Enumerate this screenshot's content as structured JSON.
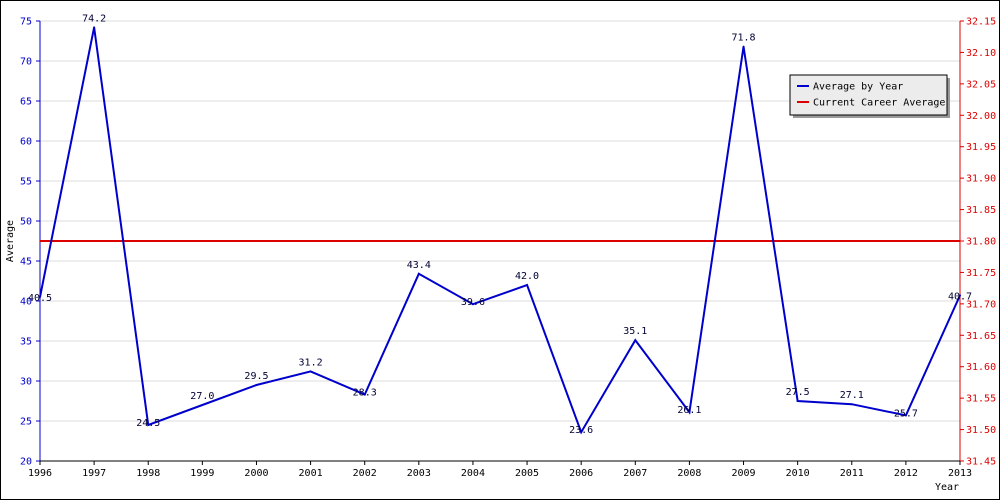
{
  "chart_data": {
    "type": "line",
    "title": "",
    "xlabel": "Year",
    "ylabel": "Average",
    "x": [
      "1996",
      "1997",
      "1998",
      "1999",
      "2000",
      "2001",
      "2002",
      "2003",
      "2004",
      "2005",
      "2006",
      "2007",
      "2008",
      "2009",
      "2010",
      "2011",
      "2012",
      "2013"
    ],
    "series": [
      {
        "name": "Average by Year",
        "color": "#0000cc",
        "axis": "left",
        "values": [
          40.5,
          74.2,
          24.5,
          27.0,
          29.5,
          31.2,
          28.3,
          43.4,
          39.6,
          42.0,
          23.6,
          35.1,
          26.1,
          71.8,
          27.5,
          27.1,
          25.7,
          40.7
        ],
        "labels": [
          "40.5",
          "74.2",
          "24.5",
          "27.0",
          "29.5",
          "31.2",
          "28.3",
          "43.4",
          "39.6",
          "42.0",
          "23.6",
          "35.1",
          "26.1",
          "71.8",
          "27.5",
          "27.1",
          "25.7",
          "40.7"
        ]
      },
      {
        "name": "Current Career Average",
        "color": "#dd0000",
        "axis": "right",
        "value": 31.8
      }
    ],
    "y_left": {
      "ylim": [
        20,
        75
      ],
      "ticks": [
        "20",
        "25",
        "30",
        "35",
        "40",
        "45",
        "50",
        "55",
        "60",
        "65",
        "70",
        "75"
      ],
      "color": "#0000cc"
    },
    "y_right": {
      "ylim": [
        31.45,
        32.15
      ],
      "ticks": [
        "31.45",
        "31.50",
        "31.55",
        "31.60",
        "31.65",
        "31.70",
        "31.75",
        "31.80",
        "31.85",
        "31.90",
        "31.95",
        "32.00",
        "32.05",
        "32.10",
        "32.15"
      ],
      "color": "#dd0000"
    },
    "grid": true,
    "legend_position": "top-right"
  }
}
